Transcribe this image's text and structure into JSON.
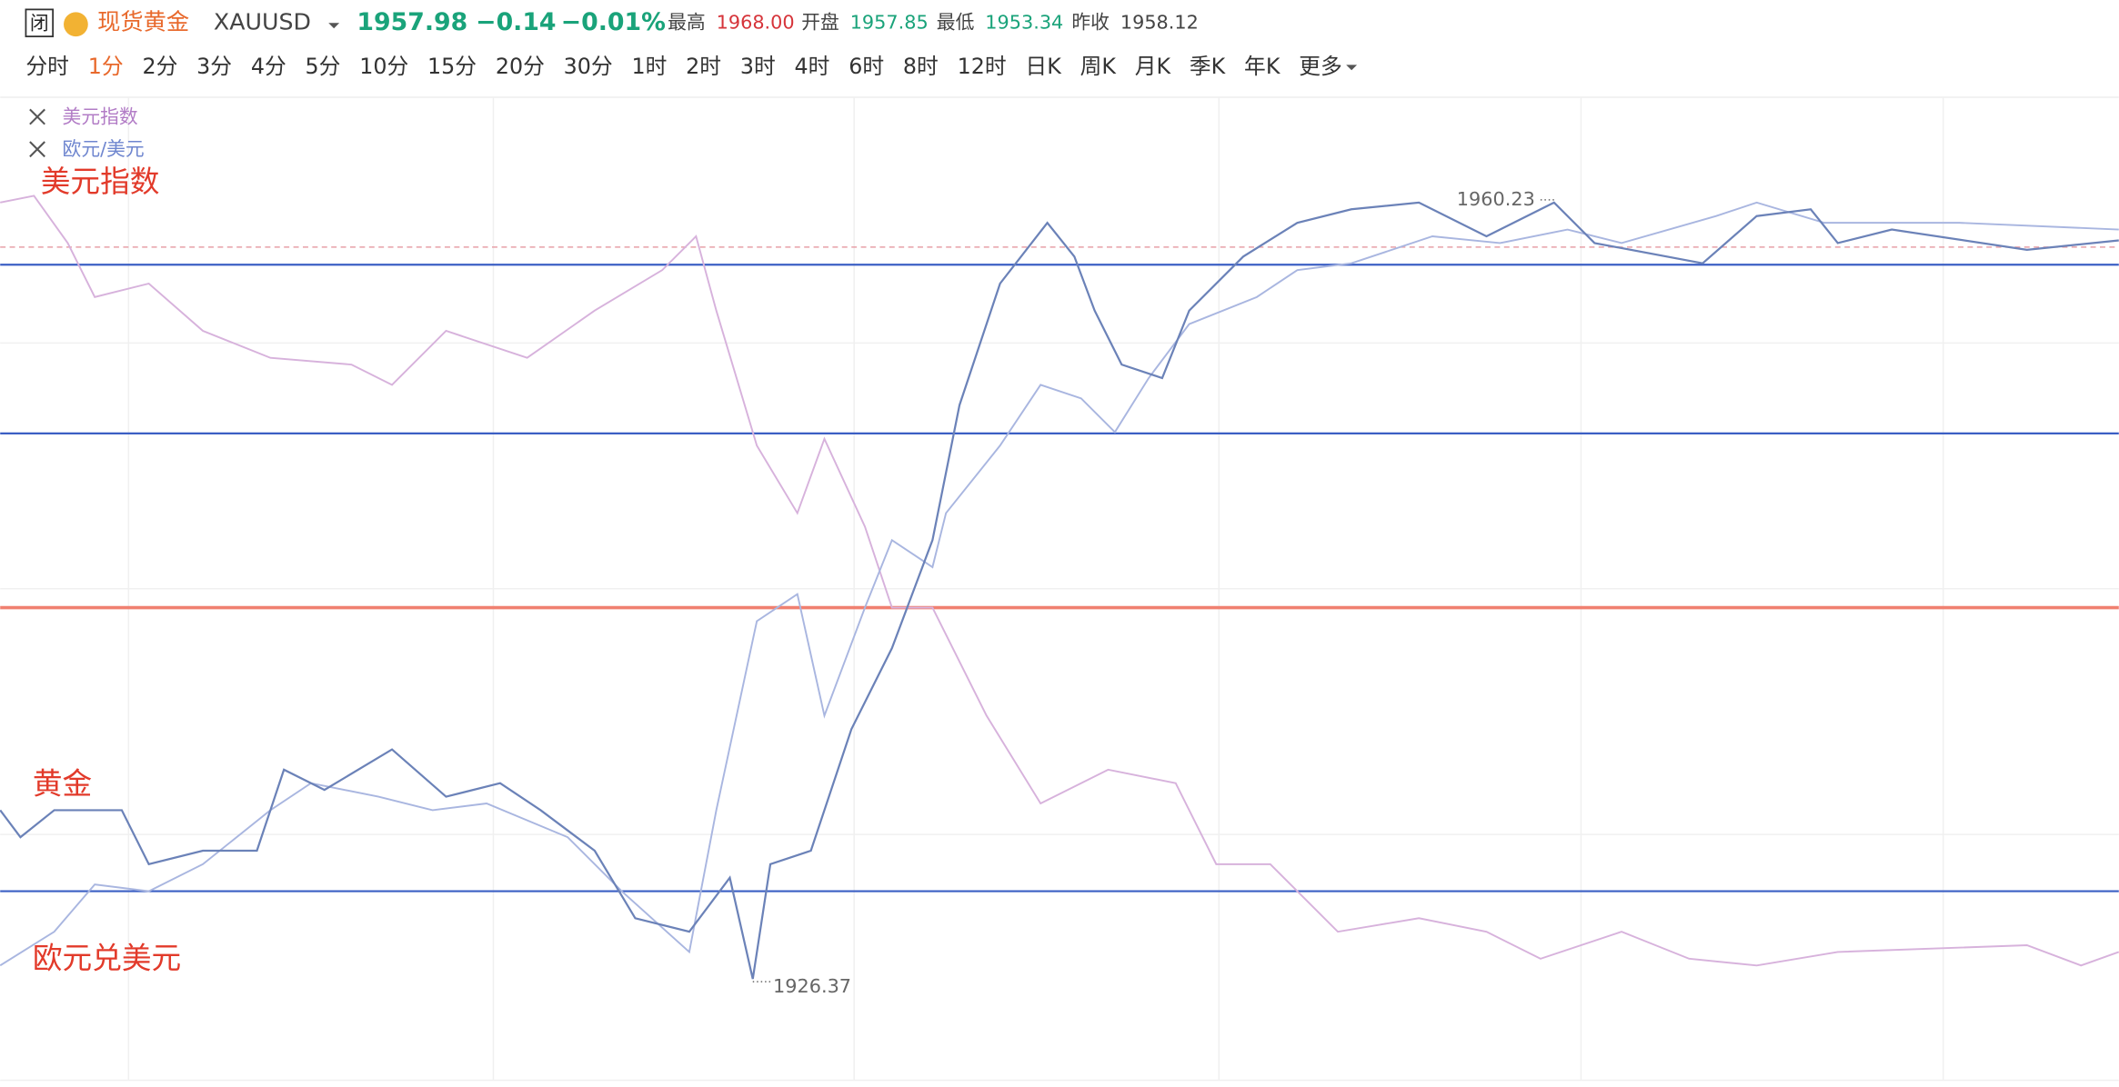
{
  "header": {
    "badge": "闭",
    "name": "现货黄金",
    "symbol": "XAUUSD",
    "price": "1957.98",
    "change": "−0.14",
    "change_pct": "−0.01%",
    "high_label": "最高",
    "high": "1968.00",
    "open_label": "开盘",
    "open": "1957.85",
    "low_label": "最低",
    "low": "1953.34",
    "prev_close_label": "昨收",
    "prev_close": "1958.12"
  },
  "timeframes": [
    "分时",
    "1分",
    "2分",
    "3分",
    "4分",
    "5分",
    "10分",
    "15分",
    "20分",
    "30分",
    "1时",
    "2时",
    "3时",
    "4时",
    "6时",
    "8时",
    "12时",
    "日K",
    "周K",
    "月K",
    "季K",
    "年K",
    "更多"
  ],
  "legend": [
    "美元指数",
    "欧元/美元"
  ],
  "annotations": [
    "美元指数",
    "黄金",
    "欧元兑美元"
  ],
  "price_labels": {
    "high": "1960.23",
    "low": "1926.37"
  }
}
